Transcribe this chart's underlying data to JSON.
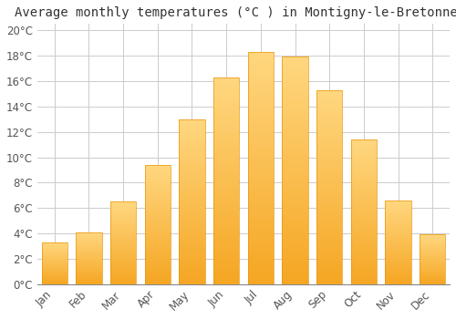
{
  "title": "Average monthly temperatures (°C ) in Montigny-le-Bretonneux",
  "months": [
    "Jan",
    "Feb",
    "Mar",
    "Apr",
    "May",
    "Jun",
    "Jul",
    "Aug",
    "Sep",
    "Oct",
    "Nov",
    "Dec"
  ],
  "temperatures": [
    3.3,
    4.1,
    6.5,
    9.4,
    13.0,
    16.3,
    18.3,
    17.9,
    15.3,
    11.4,
    6.6,
    3.9
  ],
  "bar_color_bottom": "#F5A623",
  "bar_color_top": "#FFD580",
  "background_color": "#ffffff",
  "plot_bg_color": "#ffffff",
  "ylim": [
    0,
    20.5
  ],
  "yticks": [
    0,
    2,
    4,
    6,
    8,
    10,
    12,
    14,
    16,
    18,
    20
  ],
  "ytick_labels": [
    "0°C",
    "2°C",
    "4°C",
    "6°C",
    "8°C",
    "10°C",
    "12°C",
    "14°C",
    "16°C",
    "18°C",
    "20°C"
  ],
  "title_fontsize": 10,
  "tick_fontsize": 8.5,
  "grid_color": "#cccccc",
  "bar_width": 0.75
}
